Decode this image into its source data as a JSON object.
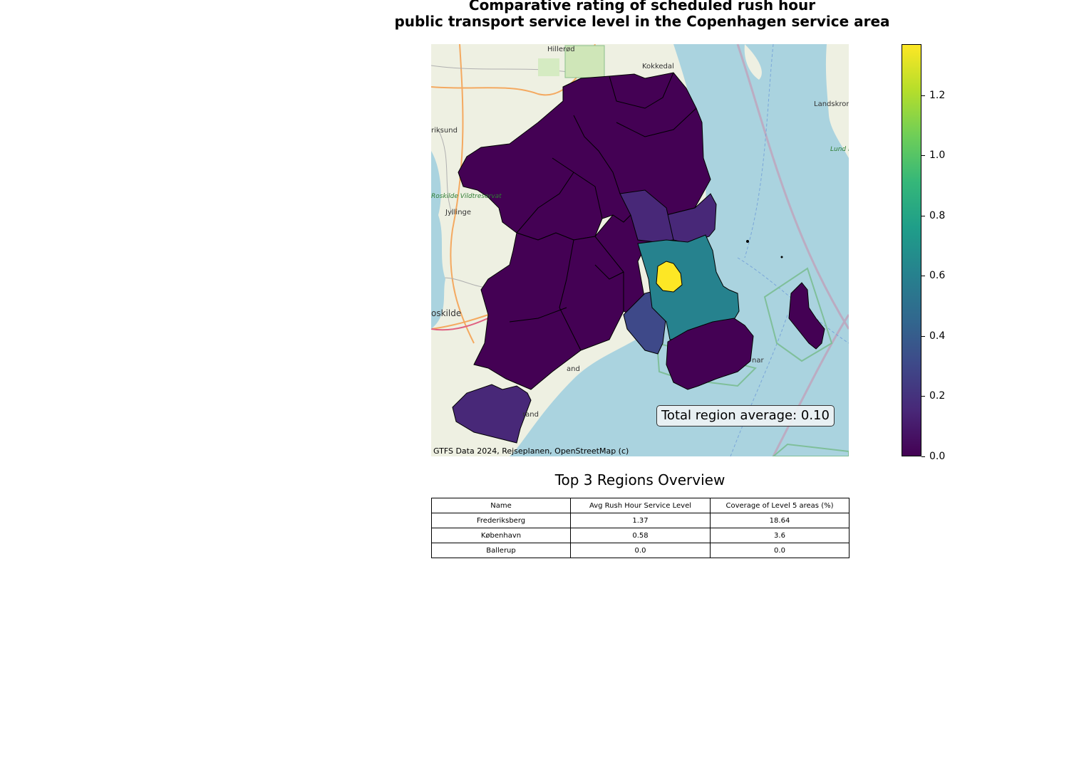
{
  "title_line1": "Comparative rating of scheduled rush hour",
  "title_line2": "public transport service level in the Copenhagen service area",
  "map": {
    "place_labels": [
      {
        "name": "Hillerød"
      },
      {
        "name": "Kokkedal"
      },
      {
        "name": "Landskron"
      },
      {
        "name": "riksund"
      },
      {
        "name": "Roskilde Vildtreservat"
      },
      {
        "name": "Jyllinge"
      },
      {
        "name": "oskilde"
      },
      {
        "name": "rand"
      },
      {
        "name": "and"
      },
      {
        "name": "nar"
      },
      {
        "name": "Lund natu"
      }
    ],
    "total_average_label": "Total region average: 0.10",
    "credit": "GTFS Data 2024, Rejseplanen, OpenStreetMap (c)"
  },
  "colorbar": {
    "colormap": "viridis",
    "colors": [
      "#440154",
      "#482878",
      "#3e4989",
      "#31688e",
      "#26828e",
      "#1f9e89",
      "#35b779",
      "#6ece58",
      "#b5de2b",
      "#fde725"
    ],
    "min": 0.0,
    "max": 1.37,
    "ticks": [
      0.0,
      0.2,
      0.4,
      0.6,
      0.8,
      1.0,
      1.2
    ],
    "tick_labels": [
      "0.0",
      "0.2",
      "0.4",
      "0.6",
      "0.8",
      "1.0",
      "1.2"
    ]
  },
  "table": {
    "title": "Top 3 Regions Overview",
    "headers": [
      "Name",
      "Avg Rush Hour Service Level",
      "Coverage of Level 5 areas (%)"
    ],
    "rows": [
      [
        "Frederiksberg",
        "1.37",
        "18.64"
      ],
      [
        "København",
        "0.58",
        "3.6"
      ],
      [
        "Ballerup",
        "0.0",
        "0.0"
      ]
    ]
  }
}
